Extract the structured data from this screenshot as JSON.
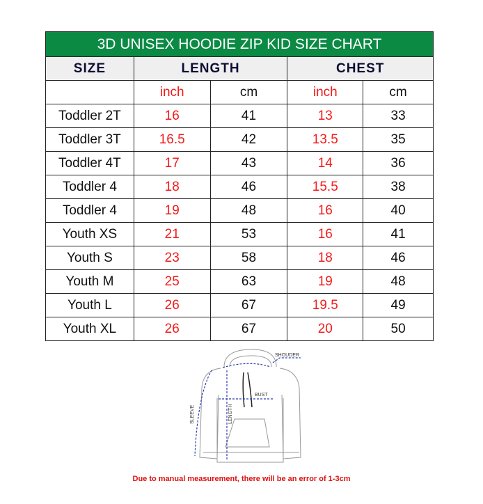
{
  "title": "3D UNISEX HOODIE ZIP KID SIZE CHART",
  "headers": {
    "size": "SIZE",
    "length": "LENGTH",
    "chest": "CHEST"
  },
  "units": {
    "inch": "inch",
    "cm": "cm"
  },
  "rows": [
    [
      "Toddler 2T",
      "16",
      "41",
      "13",
      "33"
    ],
    [
      "Toddler 3T",
      "16.5",
      "42",
      "13.5",
      "35"
    ],
    [
      "Toddler 4T",
      "17",
      "43",
      "14",
      "36"
    ],
    [
      "Toddler 4",
      "18",
      "46",
      "15.5",
      "38"
    ],
    [
      "Toddler 4",
      "19",
      "48",
      "16",
      "40"
    ],
    [
      "Youth XS",
      "21",
      "53",
      "16",
      "41"
    ],
    [
      "Youth S",
      "23",
      "58",
      "18",
      "46"
    ],
    [
      "Youth M",
      "25",
      "63",
      "19",
      "48"
    ],
    [
      "Youth L",
      "26",
      "67",
      "19.5",
      "49"
    ],
    [
      "Youth XL",
      "26",
      "67",
      "20",
      "50"
    ]
  ],
  "diagram": {
    "shoulder": "SHOUDER",
    "bust": "BUST",
    "sleeve": "SLEEVE",
    "length": "LENGTH"
  },
  "note": "Due to manual measurement, there will be an error of 1-3cm",
  "colors": {
    "header_green": "#0b8a44",
    "inch_red": "#f21c1c"
  }
}
